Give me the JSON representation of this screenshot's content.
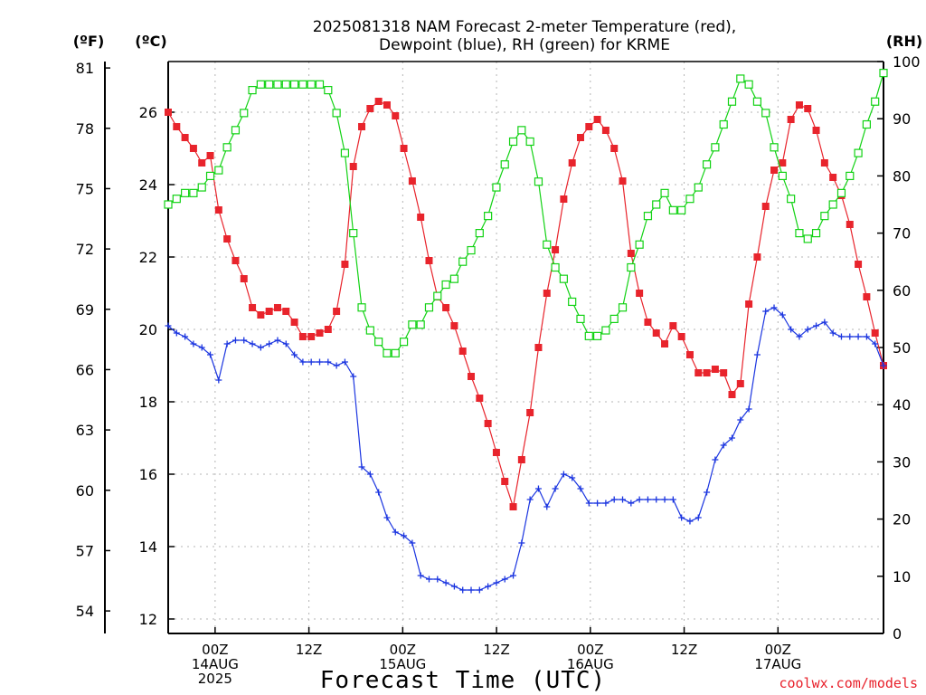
{
  "chart_data": {
    "type": "line",
    "title_line1": "2025081318 NAM Forecast 2-meter Temperature (red),",
    "title_line2": "Dewpoint (blue), RH (green) for KRME",
    "xlabel": "Forecast Time (UTC)",
    "credit": "coolwx.com/models",
    "units": {
      "fahrenheit": "(ºF)",
      "celsius": "(ºC)",
      "rh": "(RH)"
    },
    "x_range_hours": [
      0,
      61
    ],
    "celsius_axis": {
      "range": [
        11.6,
        27.4
      ],
      "ticks": [
        12,
        14,
        16,
        18,
        20,
        22,
        24,
        26
      ]
    },
    "fahrenheit_axis": {
      "ticks": [
        54,
        57,
        60,
        63,
        66,
        69,
        72,
        75,
        78,
        81
      ]
    },
    "rh_axis": {
      "range": [
        0,
        100
      ],
      "ticks": [
        0,
        10,
        20,
        30,
        40,
        50,
        60,
        70,
        80,
        90,
        100
      ]
    },
    "x_ticks": [
      {
        "hour": 4,
        "lines": [
          "00Z",
          "14AUG",
          "2025"
        ]
      },
      {
        "hour": 12,
        "lines": [
          "12Z"
        ]
      },
      {
        "hour": 20,
        "lines": [
          "00Z",
          "15AUG"
        ]
      },
      {
        "hour": 28,
        "lines": [
          "12Z"
        ]
      },
      {
        "hour": 36,
        "lines": [
          "00Z",
          "16AUG"
        ]
      },
      {
        "hour": 44,
        "lines": [
          "12Z"
        ]
      },
      {
        "hour": 52,
        "lines": [
          "00Z",
          "17AUG"
        ]
      }
    ],
    "grid": true,
    "series": [
      {
        "name": "Temperature",
        "unit": "C",
        "color": "#e8242c",
        "marker": "filled-square",
        "values": [
          26.0,
          25.6,
          25.3,
          25.0,
          24.6,
          24.8,
          23.3,
          22.5,
          21.9,
          21.4,
          20.6,
          20.4,
          20.5,
          20.6,
          20.5,
          20.2,
          19.8,
          19.8,
          19.9,
          20.0,
          20.5,
          21.8,
          24.5,
          25.6,
          26.1,
          26.3,
          26.2,
          25.9,
          25.0,
          24.1,
          23.1,
          21.9,
          20.9,
          20.6,
          20.1,
          19.4,
          18.7,
          18.1,
          17.4,
          16.6,
          15.8,
          15.1,
          16.4,
          17.7,
          19.5,
          21.0,
          22.2,
          23.6,
          24.6,
          25.3,
          25.6,
          25.8,
          25.5,
          25.0,
          24.1,
          22.1,
          21.0,
          20.2,
          19.9,
          19.6,
          20.1,
          19.8,
          19.3,
          18.8,
          18.8,
          18.9,
          18.8,
          18.2,
          18.5,
          20.7,
          22.0,
          23.4,
          24.4,
          24.6,
          25.8,
          26.2,
          26.1,
          25.5,
          24.6,
          24.2,
          23.7,
          22.9,
          21.8,
          20.9,
          19.9,
          19.0
        ]
      },
      {
        "name": "Dewpoint",
        "unit": "C",
        "color": "#1b35e0",
        "marker": "plus",
        "values": [
          20.1,
          19.9,
          19.8,
          19.6,
          19.5,
          19.3,
          18.6,
          19.6,
          19.7,
          19.7,
          19.6,
          19.5,
          19.6,
          19.7,
          19.6,
          19.3,
          19.1,
          19.1,
          19.1,
          19.1,
          19.0,
          19.1,
          18.7,
          16.2,
          16.0,
          15.5,
          14.8,
          14.4,
          14.3,
          14.1,
          13.2,
          13.1,
          13.1,
          13.0,
          12.9,
          12.8,
          12.8,
          12.8,
          12.9,
          13.0,
          13.1,
          13.2,
          14.1,
          15.3,
          15.6,
          15.1,
          15.6,
          16.0,
          15.9,
          15.6,
          15.2,
          15.2,
          15.2,
          15.3,
          15.3,
          15.2,
          15.3,
          15.3,
          15.3,
          15.3,
          15.3,
          14.8,
          14.7,
          14.8,
          15.5,
          16.4,
          16.8,
          17.0,
          17.5,
          17.8,
          19.3,
          20.5,
          20.6,
          20.4,
          20.0,
          19.8,
          20.0,
          20.1,
          20.2,
          19.9,
          19.8,
          19.8,
          19.8,
          19.8,
          19.6,
          19.0
        ]
      },
      {
        "name": "RH",
        "unit": "%",
        "color": "#12d214",
        "marker": "open-square",
        "values": [
          75.0,
          76.0,
          77.0,
          77.0,
          78.0,
          80.0,
          81.0,
          85.0,
          88.0,
          91.0,
          95.0,
          96.0,
          96.0,
          96.0,
          96.0,
          96.0,
          96.0,
          96.0,
          96.0,
          95.0,
          91.0,
          84.0,
          70.0,
          57.0,
          53.0,
          51.0,
          49.0,
          49.0,
          51.0,
          54.0,
          54.0,
          57.0,
          59.0,
          61.0,
          62.0,
          65.0,
          67.0,
          70.0,
          73.0,
          78.0,
          82.0,
          86.0,
          88.0,
          86.0,
          79.0,
          68.0,
          64.0,
          62.0,
          58.0,
          55.0,
          52.0,
          52.0,
          53.0,
          55.0,
          57.0,
          64.0,
          68.0,
          73.0,
          75.0,
          77.0,
          74.0,
          74.0,
          76.0,
          78.0,
          82.0,
          85.0,
          89.0,
          93.0,
          97.0,
          96.0,
          93.0,
          91.0,
          85.0,
          80.0,
          76.0,
          70.0,
          69.0,
          70.0,
          73.0,
          75.0,
          77.0,
          80.0,
          84.0,
          89.0,
          93.0,
          98.0
        ]
      }
    ]
  }
}
